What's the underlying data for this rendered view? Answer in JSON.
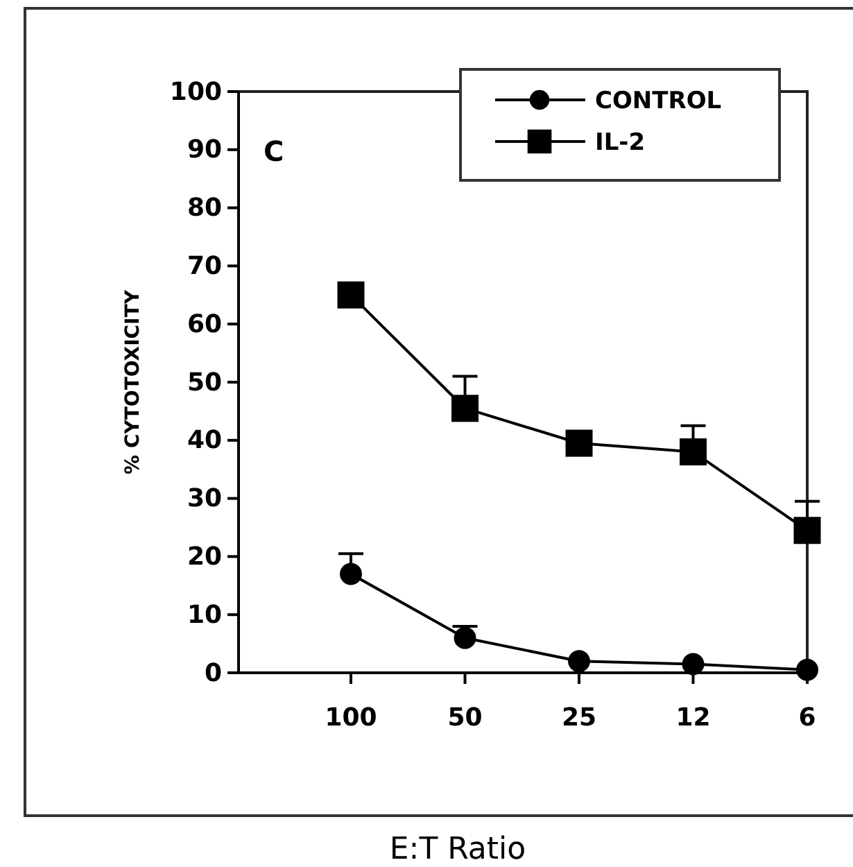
{
  "chart_data": {
    "type": "line",
    "xlabel": "E:T Ratio",
    "ylabel": "% CYTOTOXICITY",
    "annotations": [
      "C"
    ],
    "categories": [
      "100",
      "50",
      "25",
      "12",
      "6"
    ],
    "series": [
      {
        "name": "CONTROL",
        "color": "#000000",
        "marker": "circle",
        "values": [
          17,
          6,
          2,
          1.5,
          0.5
        ],
        "errors": [
          [
            17,
            20.5
          ],
          [
            6,
            8
          ],
          null,
          null,
          null
        ]
      },
      {
        "name": "IL-2",
        "color": "#000000",
        "marker": "square",
        "values": [
          65,
          45.5,
          39.5,
          38,
          24.5
        ],
        "errors": [
          null,
          [
            45.5,
            51
          ],
          null,
          [
            38,
            42.5
          ],
          [
            24.5,
            29.5
          ]
        ]
      }
    ],
    "ylim": [
      0,
      100
    ],
    "yticks": [
      0,
      10,
      20,
      30,
      40,
      50,
      60,
      70,
      80,
      90,
      100
    ],
    "grid": false,
    "legend": "top right",
    "line_style": "solid"
  }
}
